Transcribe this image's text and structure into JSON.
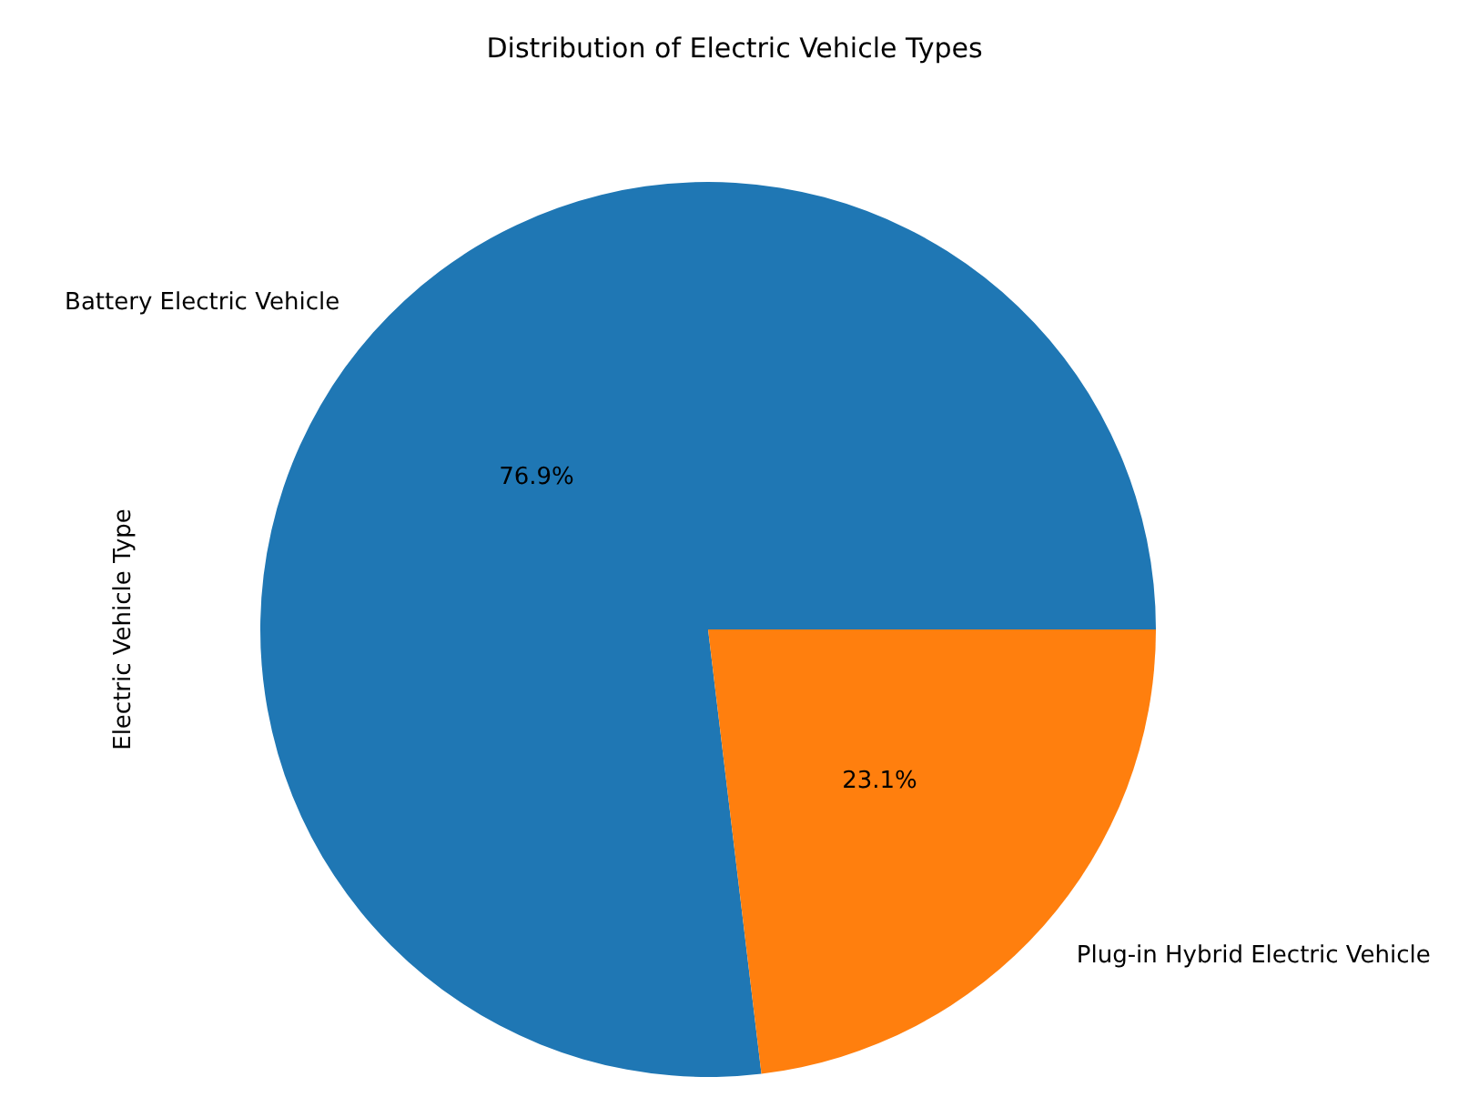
{
  "chart_data": {
    "type": "pie",
    "title": "Distribution of Electric Vehicle Types",
    "ylabel": "Electric Vehicle Type",
    "categories": [
      "Battery Electric Vehicle",
      "Plug-in Hybrid Electric Vehicle"
    ],
    "values": [
      76.9,
      23.1
    ],
    "colors": [
      "#1f77b4",
      "#ff7f0e"
    ],
    "value_labels": [
      "76.9%",
      "23.1%"
    ],
    "legend": false
  }
}
